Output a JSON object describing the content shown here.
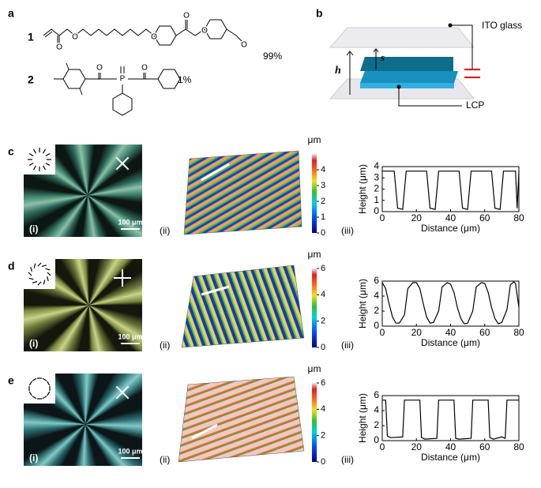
{
  "panel_a": {
    "label": "a",
    "compound_1": "1",
    "compound_1_ratio": "99%",
    "compound_2": "2",
    "compound_2_ratio": "1%",
    "atoms_1": [
      "O",
      "O",
      "O",
      "O",
      "O",
      "O"
    ],
    "atoms_2": [
      "O",
      "P",
      "O"
    ]
  },
  "panel_b": {
    "label": "b",
    "electrode": "ITO glass",
    "gap_height": "h",
    "spacing": "s",
    "film": "LCP"
  },
  "rows": [
    {
      "label": "c",
      "image_tag": "(i)",
      "scale_bar": "100 μm",
      "surface_tag": "(ii)",
      "colorbar_unit": "μm",
      "colorbar_lim": [
        0,
        5
      ],
      "colorbar_ticks": [
        0,
        1,
        2,
        3,
        4
      ],
      "profile_tag": "(iii)"
    },
    {
      "label": "d",
      "image_tag": "(i)",
      "scale_bar": "100 μm",
      "surface_tag": "(ii)",
      "colorbar_unit": "μm",
      "colorbar_lim": [
        0,
        6
      ],
      "colorbar_ticks": [
        0,
        2,
        4,
        6
      ],
      "profile_tag": "(iii)"
    },
    {
      "label": "e",
      "image_tag": "(i)",
      "scale_bar": "100 μm",
      "surface_tag": "(ii)",
      "colorbar_unit": "μm",
      "colorbar_lim": [
        0,
        6
      ],
      "colorbar_ticks": [
        0,
        2,
        4,
        6
      ],
      "profile_tag": "(iii)"
    }
  ],
  "chart_data": [
    {
      "type": "line",
      "xlabel": "Distance (μm)",
      "ylabel": "Height (μm)",
      "x": [
        0,
        7,
        9,
        12,
        14,
        17,
        20,
        26,
        28,
        31,
        33,
        36,
        40,
        45,
        47,
        50,
        52,
        55,
        60,
        64,
        66,
        69,
        71,
        74,
        78,
        79,
        80
      ],
      "series": [
        {
          "color": "#000000",
          "values": [
            3.6,
            3.6,
            0.3,
            0.2,
            3.6,
            3.6,
            3.6,
            3.6,
            0.3,
            0.2,
            3.6,
            3.6,
            3.6,
            3.6,
            0.3,
            0.2,
            3.6,
            3.6,
            3.6,
            3.6,
            0.3,
            0.2,
            3.6,
            3.6,
            3.6,
            0.3,
            3.6
          ]
        }
      ],
      "xlim": [
        0,
        80
      ],
      "xticks": [
        0,
        20,
        40,
        60,
        80
      ],
      "ylim": [
        0,
        4
      ],
      "yticks": [
        0,
        1,
        2,
        3,
        4
      ]
    },
    {
      "type": "line",
      "xlabel": "Distance (μm)",
      "ylabel": "Height (μm)",
      "x": [
        0,
        2,
        4,
        6,
        8,
        10,
        13,
        15,
        18,
        20,
        22,
        24,
        26,
        28,
        30,
        33,
        35,
        38,
        40,
        42,
        44,
        46,
        48,
        50,
        53,
        55,
        58,
        60,
        62,
        64,
        66,
        68,
        70,
        73,
        75,
        77,
        78,
        80
      ],
      "series": [
        {
          "color": "#000000",
          "values": [
            5.8,
            5.0,
            3.0,
            1.2,
            0.4,
            0.4,
            1.5,
            5.0,
            5.8,
            5.8,
            5.0,
            3.0,
            1.2,
            0.4,
            0.5,
            2.0,
            5.2,
            5.8,
            5.6,
            4.5,
            2.5,
            1.0,
            0.3,
            0.4,
            2.0,
            5.2,
            5.8,
            5.7,
            4.5,
            2.5,
            1.0,
            0.3,
            0.5,
            2.2,
            5.5,
            5.9,
            5.7,
            2.5
          ]
        }
      ],
      "xlim": [
        0,
        80
      ],
      "xticks": [
        0,
        20,
        40,
        60,
        80
      ],
      "ylim": [
        0,
        6
      ],
      "yticks": [
        0,
        2,
        4,
        6
      ]
    },
    {
      "type": "line",
      "xlabel": "Distance (μm)",
      "ylabel": "Height (μm)",
      "x": [
        0,
        2,
        3,
        5,
        12,
        13,
        22,
        23,
        25,
        32,
        33,
        42,
        43,
        45,
        52,
        53,
        62,
        63,
        65,
        70,
        72,
        73,
        80
      ],
      "series": [
        {
          "color": "#000000",
          "values": [
            5.4,
            5.4,
            0.6,
            0.4,
            0.5,
            5.4,
            5.4,
            0.4,
            0.2,
            0.3,
            5.4,
            5.4,
            0.3,
            0.2,
            0.3,
            5.4,
            5.4,
            0.4,
            0.2,
            0.5,
            0.3,
            5.4,
            5.4
          ]
        }
      ],
      "xlim": [
        0,
        80
      ],
      "xticks": [
        0,
        20,
        40,
        60,
        80
      ],
      "ylim": [
        0,
        6
      ],
      "yticks": [
        0,
        2,
        4,
        6
      ]
    }
  ]
}
